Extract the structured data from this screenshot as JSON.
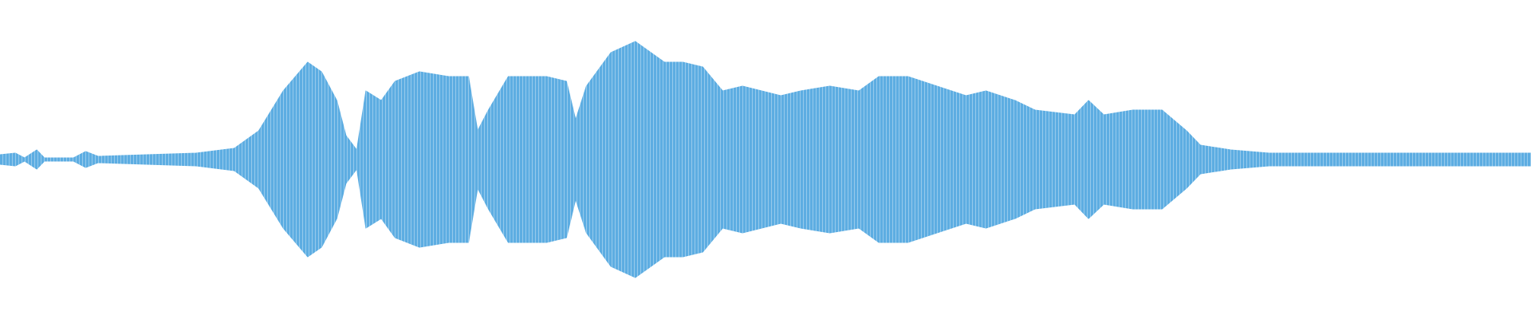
{
  "chart_data": {
    "type": "waveform",
    "color": "#5dade2",
    "xlim": [
      0,
      1
    ],
    "ylim": [
      -1,
      1
    ],
    "x": [
      0,
      0.01,
      0.016,
      0.024,
      0.029,
      0.048,
      0.056,
      0.064,
      0.096,
      0.128,
      0.153,
      0.169,
      0.185,
      0.201,
      0.21,
      0.22,
      0.226,
      0.233,
      0.239,
      0.249,
      0.258,
      0.274,
      0.293,
      0.306,
      0.312,
      0.319,
      0.332,
      0.357,
      0.37,
      0.376,
      0.383,
      0.399,
      0.415,
      0.434,
      0.446,
      0.459,
      0.472,
      0.485,
      0.51,
      0.523,
      0.542,
      0.561,
      0.574,
      0.593,
      0.612,
      0.631,
      0.644,
      0.663,
      0.676,
      0.702,
      0.711,
      0.721,
      0.74,
      0.759,
      0.775,
      0.784,
      0.804,
      0.829,
      0.893,
      0.957,
      1
    ],
    "values": [
      0.03,
      0.04,
      0.01,
      0.06,
      0.01,
      0.01,
      0.05,
      0.02,
      0.03,
      0.04,
      0.07,
      0.18,
      0.43,
      0.61,
      0.55,
      0.37,
      0.15,
      0.06,
      0.43,
      0.37,
      0.49,
      0.55,
      0.52,
      0.52,
      0.18,
      0.31,
      0.52,
      0.52,
      0.49,
      0.25,
      0.46,
      0.67,
      0.74,
      0.61,
      0.61,
      0.58,
      0.43,
      0.46,
      0.4,
      0.43,
      0.46,
      0.43,
      0.52,
      0.52,
      0.46,
      0.4,
      0.43,
      0.37,
      0.31,
      0.28,
      0.37,
      0.28,
      0.31,
      0.31,
      0.18,
      0.09,
      0.06,
      0.04,
      0.04,
      0.04,
      0.04
    ]
  }
}
